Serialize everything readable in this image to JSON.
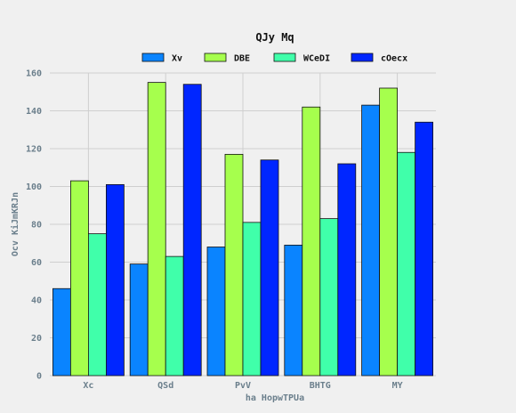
{
  "chart_data": {
    "type": "bar",
    "title": "QJy Mq",
    "xlabel": "ha HopwTPUa",
    "ylabel": "Ocv KiJmKRJn",
    "categories": [
      "Xc",
      "QSd",
      "PvV",
      "BHTG",
      "MY"
    ],
    "series": [
      {
        "name": "Xv",
        "color": "#0a84ff",
        "values": [
          46,
          59,
          68,
          69,
          143
        ]
      },
      {
        "name": "DBE",
        "color": "#a6ff4d",
        "values": [
          103,
          155,
          117,
          142,
          152
        ]
      },
      {
        "name": "WCeDI",
        "color": "#40ffaa",
        "values": [
          75,
          63,
          81,
          83,
          118
        ]
      },
      {
        "name": "cOecx",
        "color": "#0026ff",
        "values": [
          101,
          154,
          114,
          112,
          134
        ]
      }
    ],
    "ylim": [
      0,
      160
    ],
    "yticks": [
      0,
      20,
      40,
      60,
      80,
      100,
      120,
      140,
      160
    ],
    "grid": true,
    "legend_position": "top"
  }
}
